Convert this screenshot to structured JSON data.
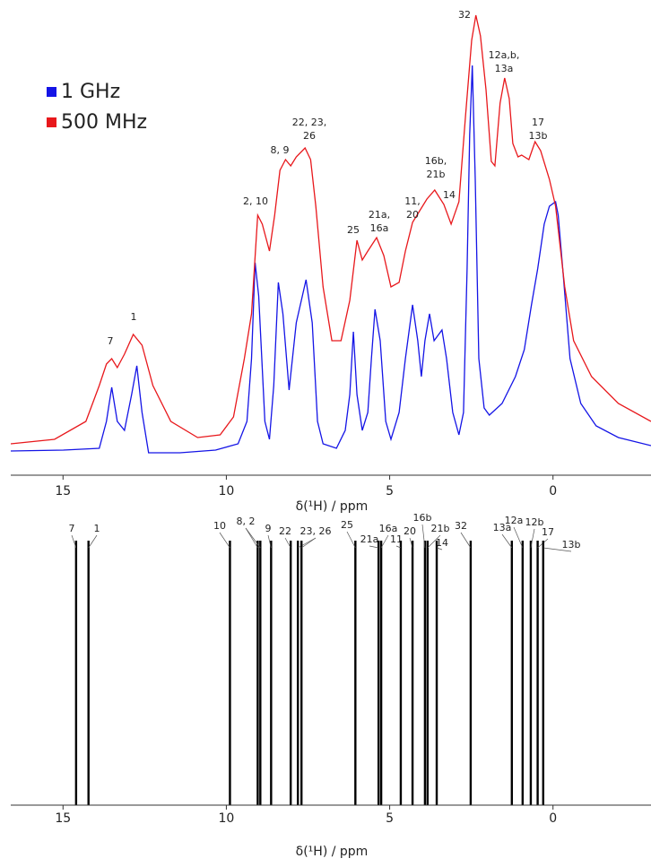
{
  "chart_data": [
    {
      "type": "line",
      "xlabel": "δ(¹H) / ppm",
      "xlim": [
        16.6,
        -3.0
      ],
      "xticks": [
        15,
        10,
        5,
        0
      ],
      "ylim": [
        0,
        530
      ],
      "legend": "upper left",
      "series": [
        {
          "name": "1 GHz",
          "color": "#1414e6",
          "x": [
            16.6,
            14.99,
            13.89,
            13.67,
            13.51,
            13.34,
            13.12,
            12.9,
            12.74,
            12.58,
            12.38,
            11.42,
            10.33,
            9.64,
            9.37,
            9.23,
            9.12,
            9.01,
            8.82,
            8.68,
            8.55,
            8.41,
            8.27,
            8.08,
            7.86,
            7.56,
            7.37,
            7.21,
            7.04,
            6.63,
            6.36,
            6.22,
            6.11,
            6.0,
            5.84,
            5.67,
            5.56,
            5.45,
            5.29,
            5.12,
            4.96,
            4.71,
            4.52,
            4.3,
            4.14,
            4.03,
            3.92,
            3.78,
            3.64,
            3.4,
            3.26,
            3.07,
            2.88,
            2.74,
            2.63,
            2.55,
            2.47,
            2.38,
            2.27,
            2.11,
            1.95,
            1.56,
            1.15,
            0.88,
            0.66,
            0.47,
            0.27,
            0.11,
            -0.08,
            -0.16,
            -0.3,
            -0.52,
            -0.85,
            -1.32,
            -2.0,
            -3.0
          ],
          "values": [
            27,
            28,
            30,
            60,
            98,
            60,
            50,
            90,
            122,
            70,
            25,
            25,
            28,
            35,
            60,
            130,
            237,
            200,
            60,
            40,
            100,
            215,
            180,
            95,
            170,
            218,
            170,
            60,
            35,
            30,
            50,
            90,
            160,
            90,
            50,
            70,
            130,
            185,
            150,
            60,
            40,
            70,
            130,
            190,
            150,
            110,
            150,
            180,
            150,
            162,
            130,
            70,
            45,
            70,
            230,
            380,
            457,
            330,
            130,
            75,
            67,
            80,
            110,
            140,
            190,
            230,
            280,
            300,
            305,
            290,
            230,
            130,
            80,
            55,
            42,
            33
          ]
        },
        {
          "name": "500 MHz",
          "color": "#e8181c",
          "x": [
            16.6,
            15.26,
            14.3,
            13.89,
            13.67,
            13.51,
            13.34,
            13.12,
            12.85,
            12.58,
            12.25,
            11.7,
            10.88,
            10.19,
            9.78,
            9.45,
            9.23,
            9.04,
            8.9,
            8.68,
            8.52,
            8.36,
            8.19,
            8.03,
            7.86,
            7.59,
            7.42,
            7.26,
            7.04,
            6.77,
            6.49,
            6.22,
            6.0,
            5.84,
            5.67,
            5.4,
            5.18,
            4.96,
            4.71,
            4.52,
            4.3,
            4.08,
            3.86,
            3.62,
            3.34,
            3.12,
            2.88,
            2.68,
            2.49,
            2.36,
            2.22,
            2.05,
            1.89,
            1.78,
            1.62,
            1.48,
            1.34,
            1.23,
            1.07,
            0.96,
            0.74,
            0.55,
            0.38,
            0.11,
            -0.08,
            -0.36,
            -0.63,
            -1.18,
            -2.0,
            -3.0
          ],
          "values": [
            35,
            40,
            60,
            100,
            124,
            130,
            120,
            135,
            157,
            145,
            100,
            60,
            42,
            45,
            65,
            130,
            180,
            290,
            280,
            250,
            290,
            340,
            352,
            345,
            355,
            365,
            352,
            300,
            210,
            150,
            150,
            195,
            262,
            240,
            250,
            265,
            245,
            210,
            215,
            250,
            282,
            295,
            308,
            318,
            302,
            280,
            305,
            400,
            485,
            513,
            490,
            430,
            350,
            345,
            415,
            443,
            420,
            370,
            355,
            357,
            352,
            372,
            362,
            330,
            300,
            210,
            150,
            110,
            80,
            60
          ]
        }
      ],
      "annotations": [
        {
          "text": [
            "7"
          ]
        },
        {
          "text": [
            "1"
          ]
        },
        {
          "text": [
            "2, 10"
          ]
        },
        {
          "text": [
            "8, 9"
          ]
        },
        {
          "text": [
            "22, 23,",
            "26"
          ]
        },
        {
          "text": [
            "25"
          ]
        },
        {
          "text": [
            "21a,",
            "16a"
          ]
        },
        {
          "text": [
            "11,",
            "20"
          ]
        },
        {
          "text": [
            "16b,",
            "21b"
          ]
        },
        {
          "text": [
            "14"
          ]
        },
        {
          "text": [
            "32"
          ]
        },
        {
          "text": [
            "12a,b,",
            "13a"
          ]
        },
        {
          "text": [
            "17",
            "13b"
          ]
        }
      ]
    },
    {
      "type": "stick",
      "xlabel": "δ(¹H) / ppm",
      "xlim": [
        16.6,
        -3.0
      ],
      "xticks": [
        15,
        10,
        5,
        0
      ],
      "color": "#000000",
      "peaks": [
        {
          "label": "7",
          "x": [
            14.6
          ]
        },
        {
          "label": "1",
          "x": [
            14.22
          ]
        },
        {
          "label": "10",
          "x": [
            9.89
          ]
        },
        {
          "label": "8, 2",
          "x": [
            9.04,
            8.96
          ]
        },
        {
          "label": "9",
          "x": [
            8.63
          ]
        },
        {
          "label": "22",
          "x": [
            8.03
          ]
        },
        {
          "label": "23, 26",
          "x": [
            7.81,
            7.7
          ]
        },
        {
          "label": "25",
          "x": [
            6.05
          ]
        },
        {
          "label": "21a",
          "x": [
            5.34
          ]
        },
        {
          "label": "16a",
          "x": [
            5.26
          ]
        },
        {
          "label": "11",
          "x": [
            4.66
          ]
        },
        {
          "label": "20",
          "x": [
            4.3
          ]
        },
        {
          "label": "16b",
          "x": [
            3.92
          ]
        },
        {
          "label": "21b",
          "x": [
            3.84
          ]
        },
        {
          "label": "14",
          "x": [
            3.56
          ]
        },
        {
          "label": "32",
          "x": [
            2.52
          ]
        },
        {
          "label": "13a",
          "x": [
            1.26
          ]
        },
        {
          "label": "12a",
          "x": [
            0.93
          ]
        },
        {
          "label": "12b",
          "x": [
            0.68
          ]
        },
        {
          "label": "17",
          "x": [
            0.47
          ]
        },
        {
          "label": "13b",
          "x": [
            0.3
          ]
        }
      ]
    }
  ]
}
